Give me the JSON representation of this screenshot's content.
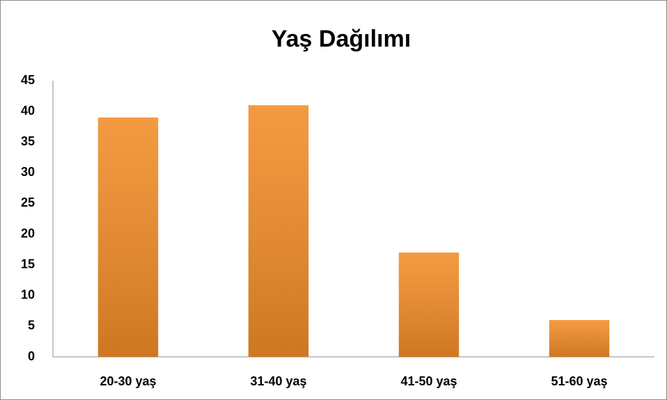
{
  "chart_data": {
    "type": "bar",
    "title": "Yaş Dağılımı",
    "categories": [
      "20-30 yaş",
      "31-40 yaş",
      "41-50 yaş",
      "51-60 yaş"
    ],
    "values": [
      39,
      41,
      17,
      6
    ],
    "color": "#f28c28",
    "ylim": [
      0,
      45
    ],
    "yticks": [
      0,
      5,
      10,
      15,
      20,
      25,
      30,
      35,
      40,
      45
    ],
    "grid": false
  }
}
